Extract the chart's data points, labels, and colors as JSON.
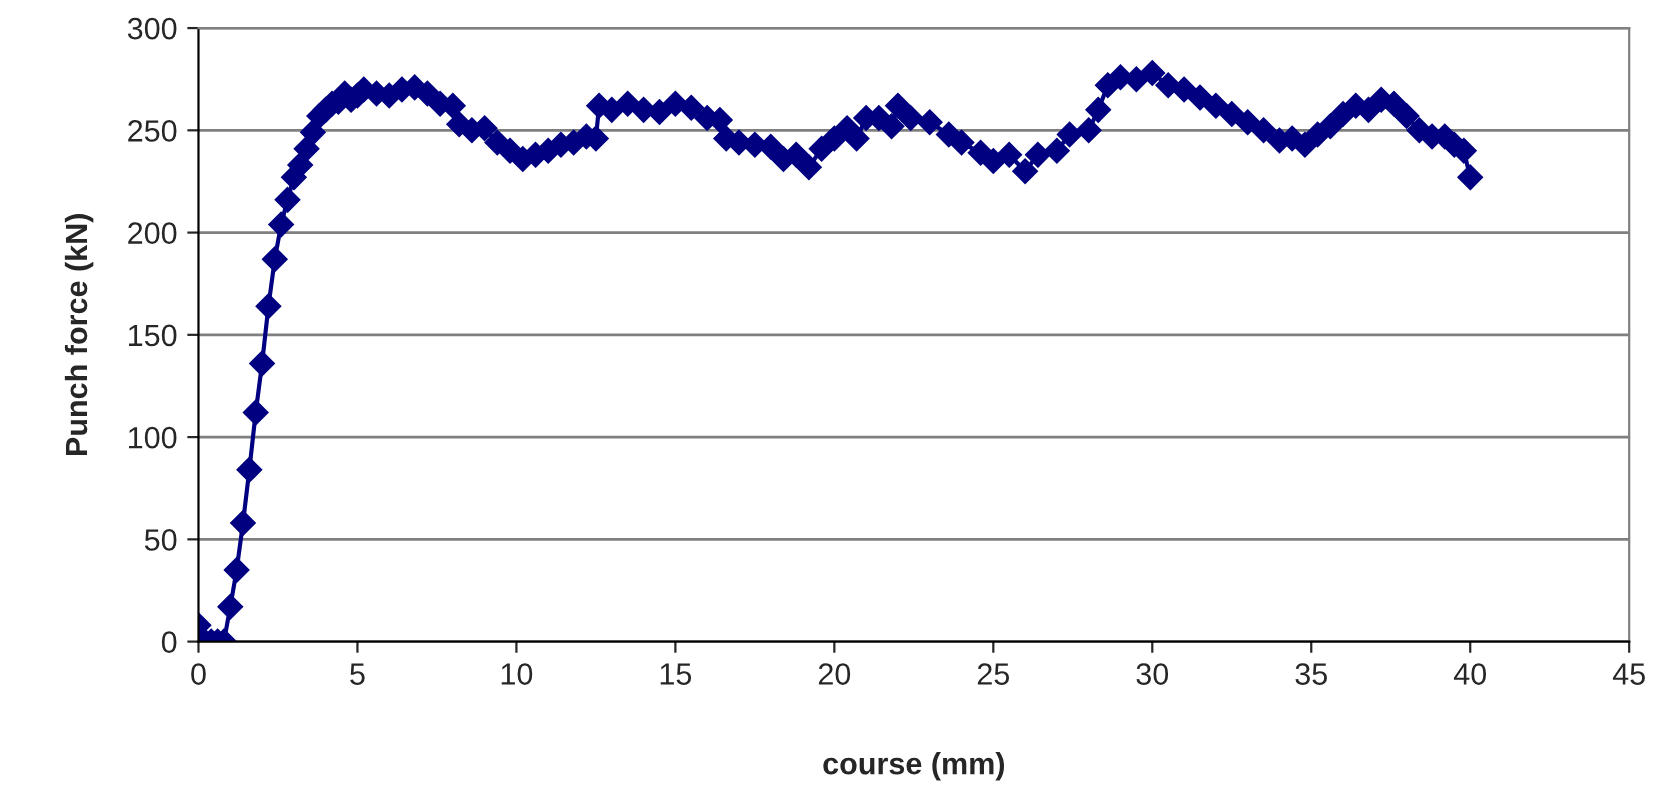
{
  "chart_data": {
    "type": "line",
    "xlabel": "course (mm)",
    "ylabel": "Punch force (kN)",
    "xlim": [
      0,
      45
    ],
    "xticks": [
      0,
      5,
      10,
      15,
      20,
      25,
      30,
      35,
      40,
      45
    ],
    "ylim": [
      0,
      300
    ],
    "yticks": [
      0,
      50,
      100,
      150,
      200,
      250,
      300
    ],
    "grid": "y",
    "marker": "diamond",
    "line_style": "solid",
    "legend": false,
    "series": [
      {
        "color": "#000080",
        "x": [
          0,
          0.2,
          0.4,
          0.6,
          0.8,
          1.0,
          1.2,
          1.4,
          1.6,
          1.8,
          2.0,
          2.2,
          2.4,
          2.6,
          2.8,
          3.0,
          3.2,
          3.4,
          3.6,
          3.8,
          4.0,
          4.2,
          4.4,
          4.6,
          4.8,
          5.0,
          5.2,
          5.6,
          6.0,
          6.4,
          6.8,
          7.2,
          7.6,
          8.0,
          8.2,
          8.6,
          9.0,
          9.4,
          9.8,
          10.2,
          10.6,
          11.0,
          11.4,
          11.8,
          12.2,
          12.5,
          12.6,
          13.0,
          13.5,
          14.0,
          14.5,
          15.0,
          15.5,
          16.0,
          16.4,
          16.6,
          17.0,
          17.5,
          18.0,
          18.4,
          18.8,
          19.2,
          19.6,
          20.0,
          20.4,
          20.7,
          21.0,
          21.4,
          21.8,
          22.0,
          22.4,
          23.0,
          23.6,
          24.0,
          24.6,
          25.0,
          25.5,
          26.0,
          26.4,
          27.0,
          27.4,
          28.0,
          28.3,
          28.6,
          29.0,
          29.5,
          30.0,
          30.5,
          31.0,
          31.5,
          32.0,
          32.5,
          33.0,
          33.5,
          34.0,
          34.4,
          34.8,
          35.2,
          35.6,
          36.0,
          36.4,
          36.8,
          37.2,
          37.6,
          38.0,
          38.4,
          38.8,
          39.2,
          39.5,
          39.8,
          40.0
        ],
        "values": [
          8,
          0,
          0,
          0,
          0,
          17,
          35,
          58,
          84,
          112,
          136,
          164,
          187,
          204,
          216,
          227,
          233,
          241,
          249,
          257,
          260,
          263,
          264,
          268,
          265,
          267,
          270,
          268,
          267,
          270,
          271,
          268,
          263,
          262,
          253,
          250,
          251,
          244,
          240,
          236,
          238,
          240,
          243,
          244,
          247,
          246,
          262,
          260,
          263,
          260,
          259,
          263,
          261,
          256,
          255,
          246,
          244,
          243,
          242,
          236,
          238,
          232,
          241,
          246,
          251,
          246,
          256,
          256,
          252,
          262,
          256,
          254,
          248,
          244,
          239,
          235,
          238,
          230,
          238,
          240,
          248,
          250,
          260,
          272,
          276,
          275,
          278,
          272,
          270,
          266,
          262,
          258,
          254,
          250,
          245,
          246,
          243,
          248,
          252,
          258,
          262,
          260,
          265,
          263,
          257,
          250,
          247,
          247,
          243,
          240,
          227
        ]
      }
    ]
  }
}
